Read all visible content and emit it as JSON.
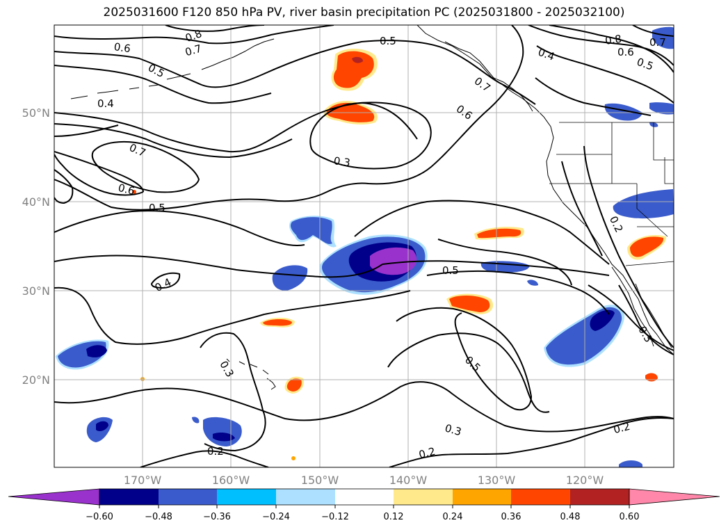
{
  "title": "2025031600 F120 850 hPa PV, river basin precipitation PC (2025031800 - 2025032100)",
  "lat_labels": [
    "50°N",
    "40°N",
    "30°N",
    "20°N"
  ],
  "lon_labels": [
    "170°W",
    "160°W",
    "150°W",
    "140°W",
    "130°W",
    "120°W"
  ],
  "contour_labels": [
    "0.8",
    "0.7",
    "0.6",
    "0.5",
    "0.4",
    "0.7",
    "0.6",
    "0.5",
    "0.3",
    "0.4",
    "0.5",
    "0.3",
    "0.5",
    "0.2",
    "0.3",
    "0.2",
    "0.8",
    "0.6",
    "0.5",
    "0.4",
    "0.5",
    "0.7",
    "0.6",
    "0.2",
    "0.3",
    "0.2",
    "0.7"
  ],
  "colorbar": {
    "ticks": [
      "−0.60",
      "−0.48",
      "−0.36",
      "−0.24",
      "−0.12",
      "0.12",
      "0.24",
      "0.36",
      "0.48",
      "0.60"
    ],
    "colors": [
      "#9932CC",
      "#00008B",
      "#3A5BCB",
      "#00BFFF",
      "#ADE0FF",
      "#FFFFFF",
      "#FFE98A",
      "#FFA500",
      "#FF4500",
      "#B22222",
      "#FF88AA"
    ]
  },
  "colors": {
    "land_border": "#000000",
    "grid": "#b0b0b0",
    "contour": "#000000"
  }
}
